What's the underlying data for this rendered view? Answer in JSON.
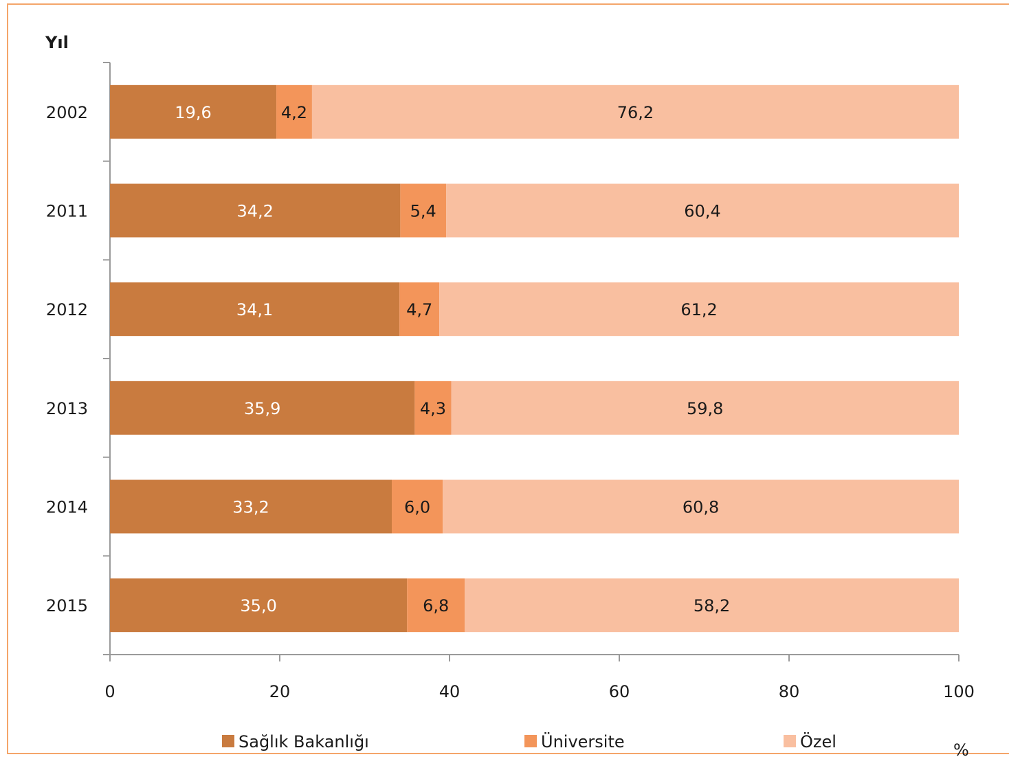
{
  "chart_data": {
    "type": "bar",
    "orientation": "horizontal",
    "stacked": true,
    "ylabel": "Yıl",
    "xlabel": "%",
    "categories": [
      "2002",
      "2011",
      "2012",
      "2013",
      "2014",
      "2015"
    ],
    "series": [
      {
        "name": "Sağlık Bakanlığı",
        "values": [
          19.6,
          34.2,
          34.1,
          35.9,
          33.2,
          35.0
        ],
        "labels": [
          "19,6",
          "34,2",
          "34,1",
          "35,9",
          "33,2",
          "35,0"
        ],
        "color": "#c97b3f",
        "label_color": "#ffffff"
      },
      {
        "name": "Üniversite",
        "values": [
          4.2,
          5.4,
          4.7,
          4.3,
          6.0,
          6.8
        ],
        "labels": [
          "4,2",
          "5,4",
          "4,7",
          "4,3",
          "6,0",
          "6,8"
        ],
        "color": "#f3955a",
        "label_color": "#1a1a1a"
      },
      {
        "name": "Özel",
        "values": [
          76.2,
          60.4,
          61.2,
          59.8,
          60.8,
          58.2
        ],
        "labels": [
          "76,2",
          "60,4",
          "61,2",
          "59,8",
          "60,8",
          "58,2"
        ],
        "color": "#f9bfa0",
        "label_color": "#1a1a1a"
      }
    ],
    "xlim": [
      0,
      100
    ],
    "xticks": [
      0,
      20,
      40,
      60,
      80,
      100
    ],
    "grid": false,
    "legend_position": "bottom"
  }
}
